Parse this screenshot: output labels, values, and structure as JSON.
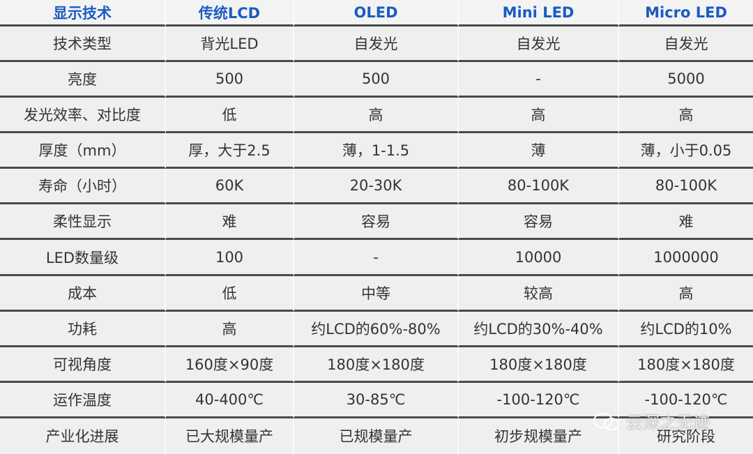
{
  "table": {
    "header": [
      "显示技术",
      "传统LCD",
      "OLED",
      "Mini LED",
      "Micro LED"
    ],
    "rows": [
      [
        "技术类型",
        "背光LED",
        "自发光",
        "自发光",
        "自发光"
      ],
      [
        "亮度",
        "500",
        "500",
        "-",
        "5000"
      ],
      [
        "发光效率、对比度",
        "低",
        "高",
        "高",
        "高"
      ],
      [
        "厚度（mm）",
        "厚，大于2.5",
        "薄，1-1.5",
        "薄",
        "薄，小于0.05"
      ],
      [
        "寿命（小时）",
        "60K",
        "20-30K",
        "80-100K",
        "80-100K"
      ],
      [
        "柔性显示",
        "难",
        "容易",
        "容易",
        "难"
      ],
      [
        "LED数量级",
        "100",
        "-",
        "10000",
        "1000000"
      ],
      [
        "成本",
        "低",
        "中等",
        "较高",
        "高"
      ],
      [
        "功耗",
        "高",
        "约LCD的60%-80%",
        "约LCD的30%-40%",
        "约LCD的10%"
      ],
      [
        "可视角度",
        "160度×90度",
        "180度×180度",
        "180度×180度",
        "180度×180度"
      ],
      [
        "运作温度",
        "40-400℃",
        "30-85℃",
        "-100-120℃",
        "-100-120℃"
      ],
      [
        "产业化进展",
        "已大规模量产",
        "已规模量产",
        "初步规模量产",
        "研究阶段"
      ]
    ]
  },
  "watermark": {
    "text": "云深之无迹"
  }
}
